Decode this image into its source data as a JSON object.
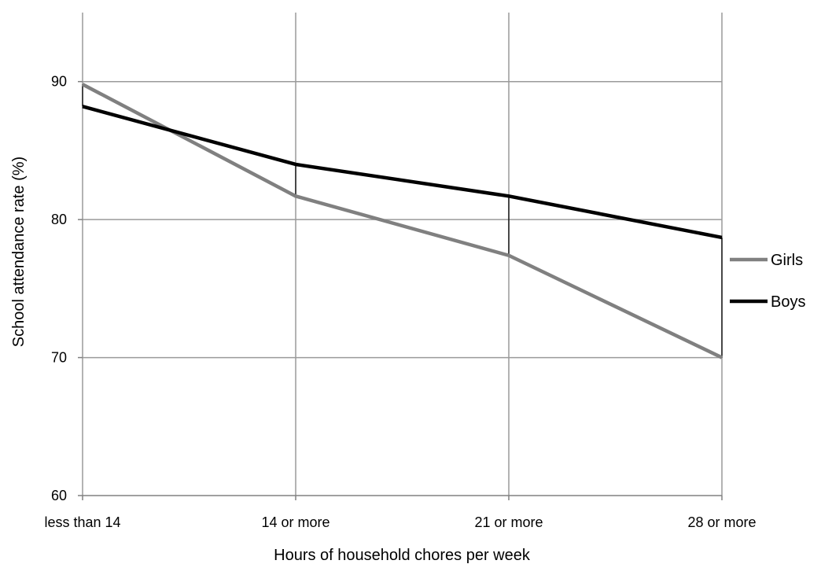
{
  "chart_data": {
    "type": "line",
    "title": "",
    "xlabel": "Hours of household chores per week",
    "ylabel": "School attendance rate  (%)",
    "categories": [
      "less than  14",
      "14 or more",
      "21 or more",
      "28 or more"
    ],
    "ylim": [
      60,
      95
    ],
    "yticks": [
      60,
      70,
      80,
      90
    ],
    "grid": true,
    "legend_position": "right",
    "series": [
      {
        "name": "Girls",
        "values": [
          89.8,
          81.7,
          77.4,
          70.0
        ],
        "color": "#808080"
      },
      {
        "name": "Boys",
        "values": [
          88.2,
          84.0,
          81.7,
          78.7
        ],
        "color": "#000000"
      }
    ],
    "gap_connectors": true
  }
}
